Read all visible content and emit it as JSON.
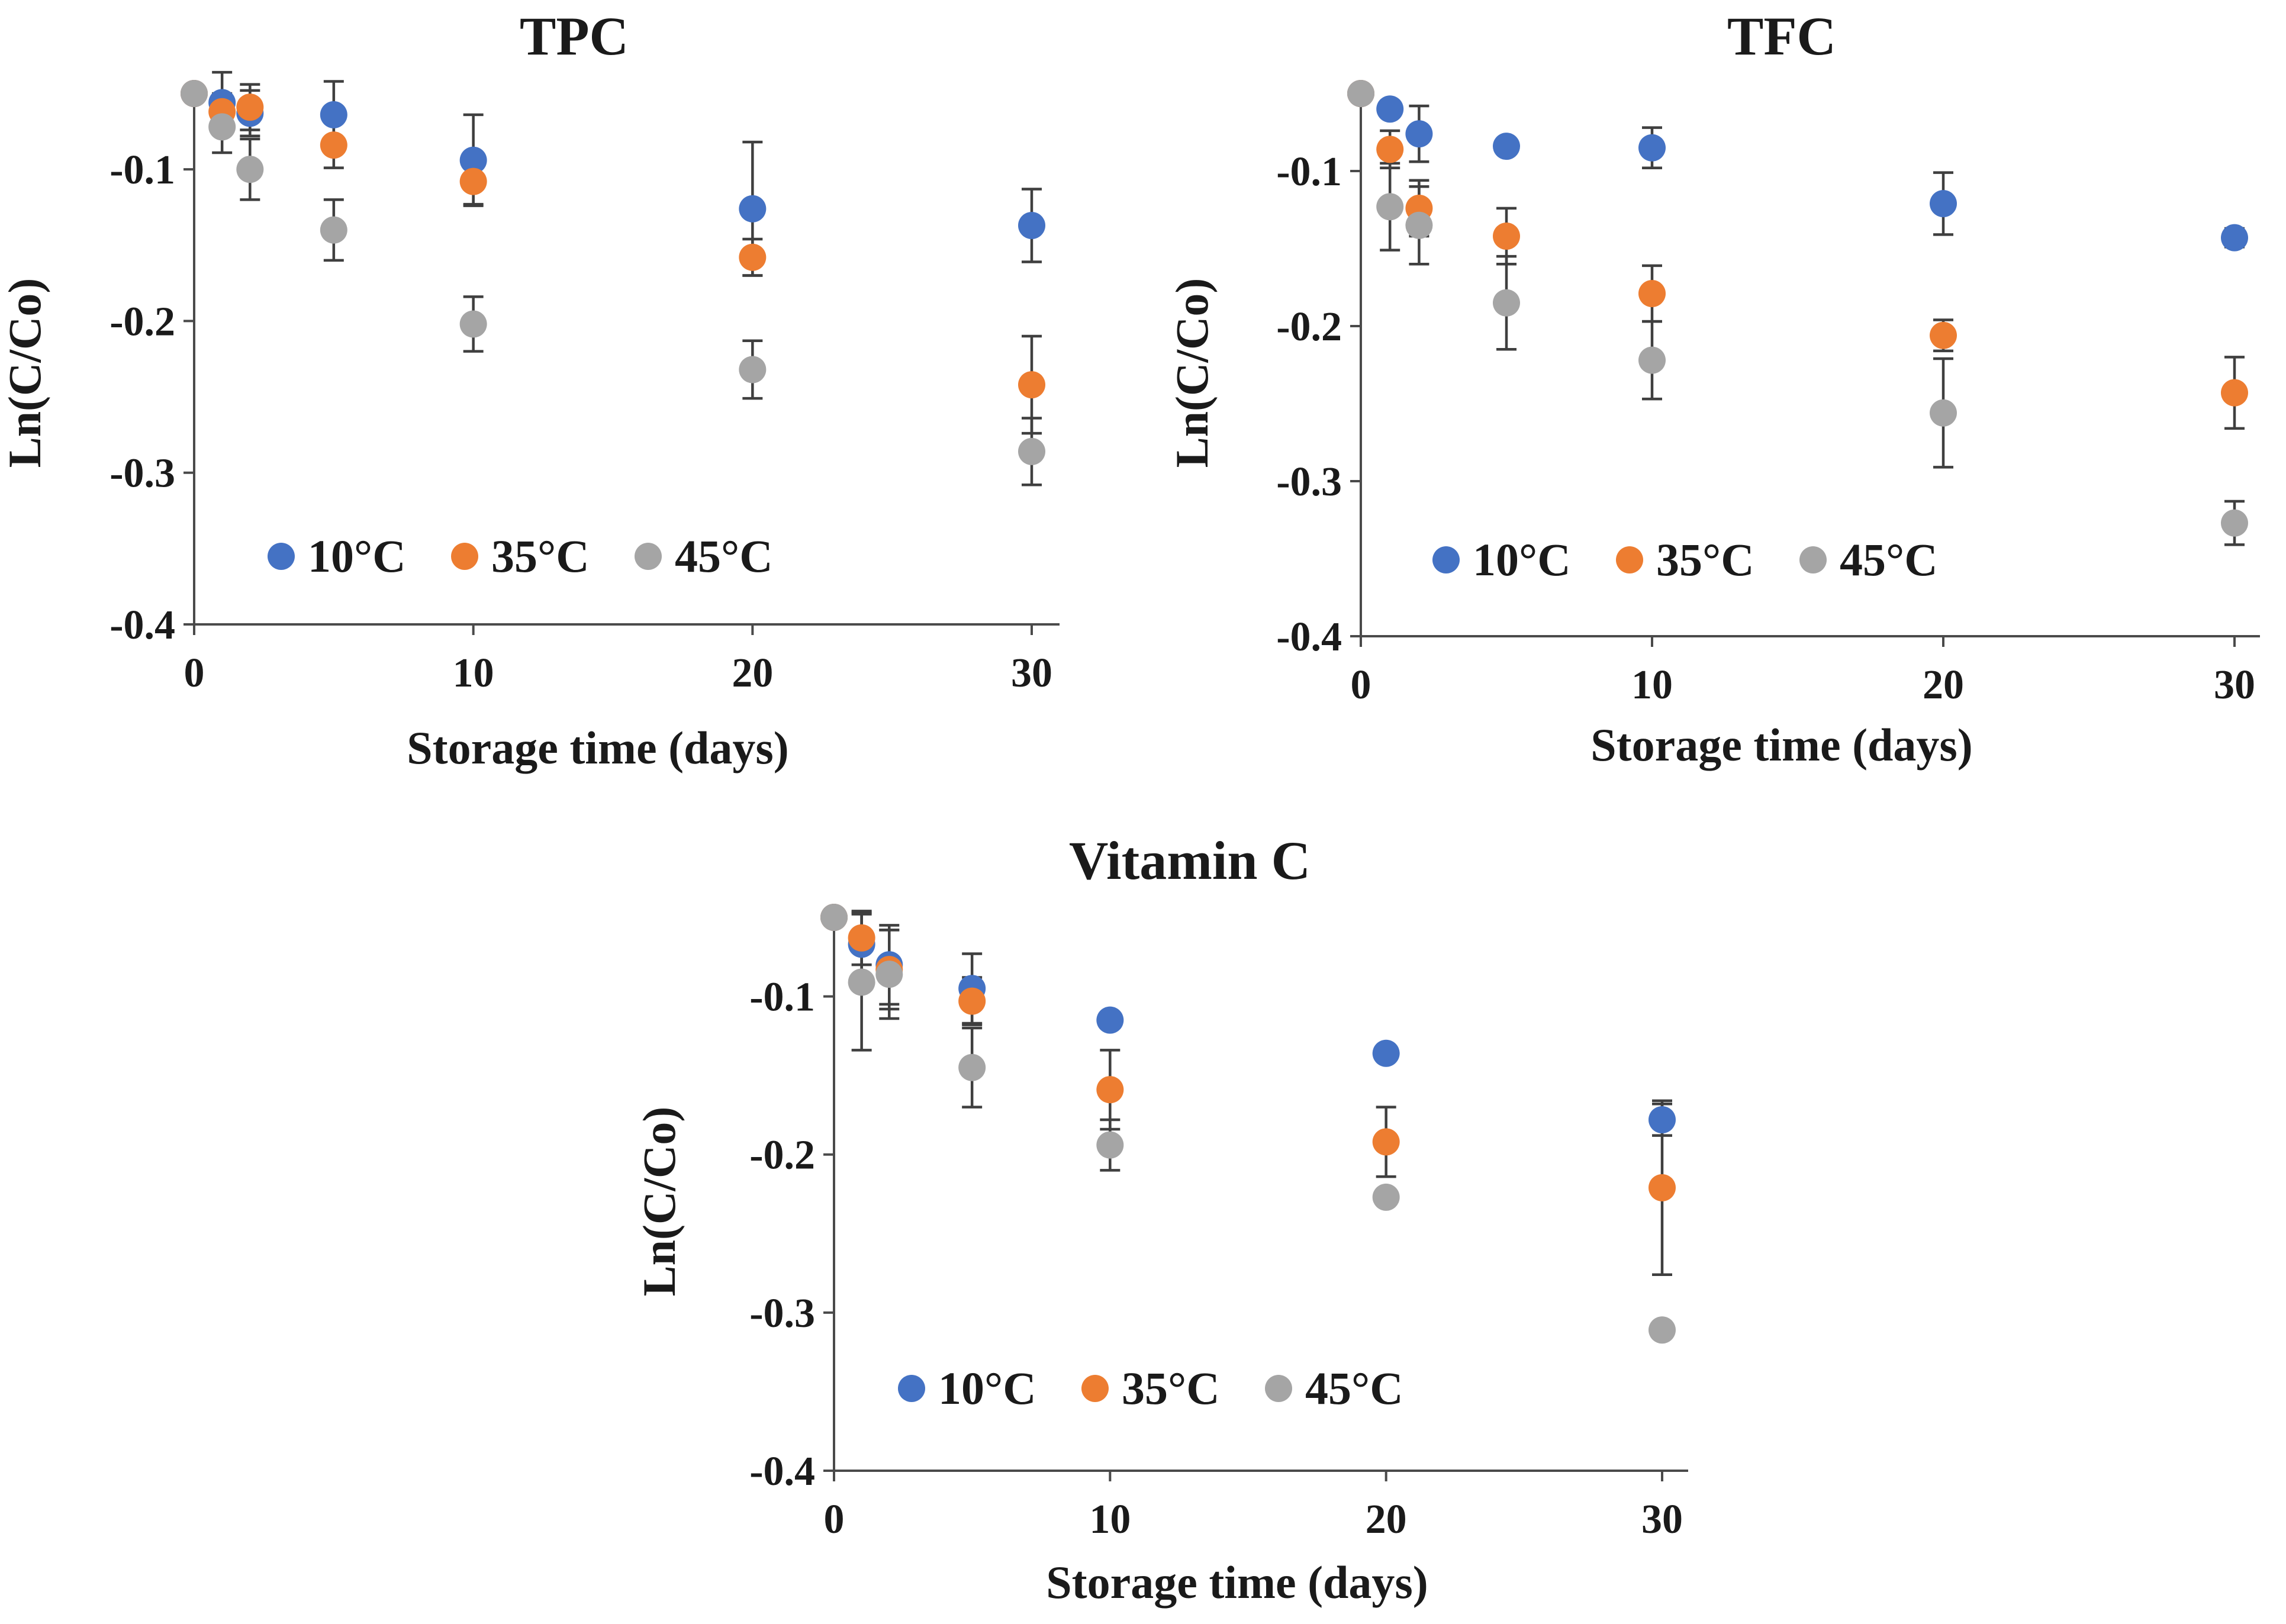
{
  "chart_data": [
    {
      "type": "scatter",
      "title": "TPC",
      "xlabel": "Storage time (days)",
      "ylabel": "Ln(C/Co)",
      "xlim": [
        0,
        31
      ],
      "ylim": [
        -0.4,
        -0.05
      ],
      "xticks": [
        0,
        10,
        20,
        30
      ],
      "xtick_labels": [
        "0",
        "10",
        "20",
        "30"
      ],
      "yticks": [
        -0.1,
        -0.2,
        -0.3,
        -0.4
      ],
      "ytick_labels": [
        "-0.1",
        "-0.2",
        "-0.3",
        "-0.4"
      ],
      "grid": false,
      "legend_position": "bottom-left",
      "series": [
        {
          "name": "10°C",
          "color": "#4472C4",
          "x": [
            0,
            1,
            2,
            5,
            10,
            20,
            30
          ],
          "y": [
            -0.05,
            -0.056,
            -0.063,
            -0.064,
            -0.094,
            -0.126,
            -0.137
          ],
          "err": [
            0,
            0.02,
            0.015,
            0.022,
            0.03,
            0.044,
            0.024
          ]
        },
        {
          "name": "35°C",
          "color": "#ED7D31",
          "x": [
            0,
            1,
            2,
            5,
            10,
            20,
            30
          ],
          "y": [
            -0.05,
            -0.062,
            -0.059,
            -0.084,
            -0.108,
            -0.158,
            -0.242
          ],
          "err": [
            0,
            0.012,
            0.015,
            0.015,
            0.015,
            0.012,
            0.032
          ]
        },
        {
          "name": "45°C",
          "color": "#A5A5A5",
          "x": [
            0,
            1,
            2,
            5,
            10,
            20,
            30
          ],
          "y": [
            -0.05,
            -0.072,
            -0.1,
            -0.14,
            -0.202,
            -0.232,
            -0.286
          ],
          "err": [
            0,
            0.017,
            0.02,
            0.02,
            0.018,
            0.019,
            0.022
          ]
        }
      ]
    },
    {
      "type": "scatter",
      "title": "TFC",
      "xlabel": "Storage time (days)",
      "ylabel": "Ln(C/Co)",
      "xlim": [
        0,
        31
      ],
      "ylim": [
        -0.4,
        -0.05
      ],
      "xticks": [
        0,
        10,
        20,
        30
      ],
      "xtick_labels": [
        "0",
        "10",
        "20",
        "30"
      ],
      "yticks": [
        -0.1,
        -0.2,
        -0.3,
        -0.4
      ],
      "ytick_labels": [
        "-0.1",
        "-0.2",
        "-0.3",
        "-0.4"
      ],
      "grid": false,
      "legend_position": "bottom-left",
      "series": [
        {
          "name": "10°C",
          "color": "#4472C4",
          "x": [
            0,
            1,
            2,
            5,
            10,
            20,
            30
          ],
          "y": [
            -0.05,
            -0.06,
            -0.076,
            -0.084,
            -0.085,
            -0.121,
            -0.143
          ],
          "err": [
            0,
            0.005,
            0.018,
            0.003,
            0.013,
            0.02,
            0.006
          ]
        },
        {
          "name": "35°C",
          "color": "#ED7D31",
          "x": [
            0,
            1,
            2,
            5,
            10,
            20,
            30
          ],
          "y": [
            -0.05,
            -0.086,
            -0.124,
            -0.142,
            -0.179,
            -0.206,
            -0.243
          ],
          "err": [
            0,
            0.012,
            0.018,
            0.018,
            0.018,
            0.01,
            0.023
          ]
        },
        {
          "name": "45°C",
          "color": "#A5A5A5",
          "x": [
            0,
            1,
            2,
            5,
            10,
            20,
            30
          ],
          "y": [
            -0.05,
            -0.123,
            -0.135,
            -0.185,
            -0.222,
            -0.256,
            -0.327
          ],
          "err": [
            0,
            0.028,
            0.025,
            0.03,
            0.025,
            0.035,
            0.014
          ]
        }
      ]
    },
    {
      "type": "scatter",
      "title": "Vitamin C",
      "xlabel": "Storage time (days)",
      "ylabel": "Ln(C/Co)",
      "xlim": [
        0,
        31
      ],
      "ylim": [
        -0.4,
        -0.05
      ],
      "xticks": [
        0,
        10,
        20,
        30
      ],
      "xtick_labels": [
        "0",
        "10",
        "20",
        "30"
      ],
      "yticks": [
        -0.1,
        -0.2,
        -0.3,
        -0.4
      ],
      "ytick_labels": [
        "-0.1",
        "-0.2",
        "-0.3",
        "-0.4"
      ],
      "grid": false,
      "legend_position": "bottom-left",
      "series": [
        {
          "name": "10°C",
          "color": "#4472C4",
          "x": [
            0,
            1,
            2,
            5,
            10,
            20,
            30
          ],
          "y": [
            -0.05,
            -0.067,
            -0.08,
            -0.095,
            -0.115,
            -0.136,
            -0.178
          ],
          "err": [
            0,
            0.02,
            0.025,
            0.022,
            0,
            0,
            0.01
          ]
        },
        {
          "name": "35°C",
          "color": "#ED7D31",
          "x": [
            0,
            1,
            2,
            5,
            10,
            20,
            30
          ],
          "y": [
            -0.05,
            -0.063,
            -0.083,
            -0.103,
            -0.159,
            -0.192,
            -0.221
          ],
          "err": [
            0,
            0.017,
            0.025,
            0.015,
            0.025,
            0.022,
            0.055
          ]
        },
        {
          "name": "45°C",
          "color": "#A5A5A5",
          "x": [
            0,
            1,
            2,
            5,
            10,
            20,
            30
          ],
          "y": [
            -0.05,
            -0.091,
            -0.086,
            -0.145,
            -0.194,
            -0.227,
            -0.311
          ],
          "err": [
            0,
            0.043,
            0.028,
            0.025,
            0.016,
            0,
            0.005
          ]
        }
      ]
    }
  ]
}
